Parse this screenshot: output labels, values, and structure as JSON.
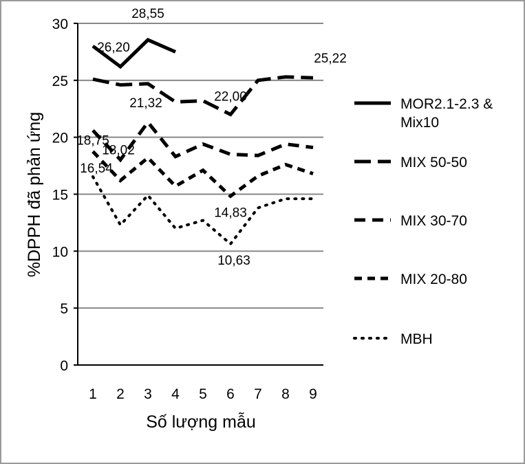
{
  "chart_data": {
    "type": "line",
    "title": "",
    "xlabel": "Số lượng mẫu",
    "ylabel": "%DPPH đã phản ứng",
    "ylim": [
      0,
      30
    ],
    "yticks": [
      0,
      5,
      10,
      15,
      20,
      25,
      30
    ],
    "x": [
      1,
      2,
      3,
      4,
      5,
      6,
      7,
      8,
      9
    ],
    "grid": "horizontal",
    "legend_position": "right",
    "series": [
      {
        "name": "MOR2.1-2.3 & Mix10",
        "dash": "solid",
        "values": [
          28.0,
          26.2,
          28.55,
          27.5,
          null,
          null,
          null,
          null,
          null
        ]
      },
      {
        "name": "MIX 50-50",
        "dash": "long-dash",
        "values": [
          25.1,
          24.6,
          24.7,
          23.1,
          23.2,
          22.0,
          25.0,
          25.3,
          25.22
        ]
      },
      {
        "name": "MIX 30-70",
        "dash": "dash",
        "values": [
          20.6,
          18.02,
          21.32,
          18.3,
          19.4,
          18.5,
          18.4,
          19.4,
          19.1
        ]
      },
      {
        "name": "MIX 20-80",
        "dash": "short-dash",
        "values": [
          18.75,
          16.2,
          18.2,
          15.7,
          17.1,
          14.83,
          16.6,
          17.6,
          16.8
        ]
      },
      {
        "name": "MBH",
        "dash": "dot",
        "values": [
          16.54,
          12.3,
          14.9,
          12.0,
          12.7,
          10.63,
          13.8,
          14.6,
          14.6
        ]
      }
    ],
    "data_labels": [
      {
        "series": 0,
        "x": 2,
        "text": "26,20"
      },
      {
        "series": 0,
        "x": 3,
        "text": "28,55"
      },
      {
        "series": 1,
        "x": 6,
        "text": "22,00"
      },
      {
        "series": 1,
        "x": 9,
        "text": "25,22"
      },
      {
        "series": 2,
        "x": 2,
        "text": "18,02"
      },
      {
        "series": 2,
        "x": 3,
        "text": "21,32"
      },
      {
        "series": 3,
        "x": 1,
        "text": "18,75"
      },
      {
        "series": 3,
        "x": 6,
        "text": "14,83"
      },
      {
        "series": 4,
        "x": 1,
        "text": "16,54"
      },
      {
        "series": 4,
        "x": 6,
        "text": "10,63"
      }
    ]
  }
}
